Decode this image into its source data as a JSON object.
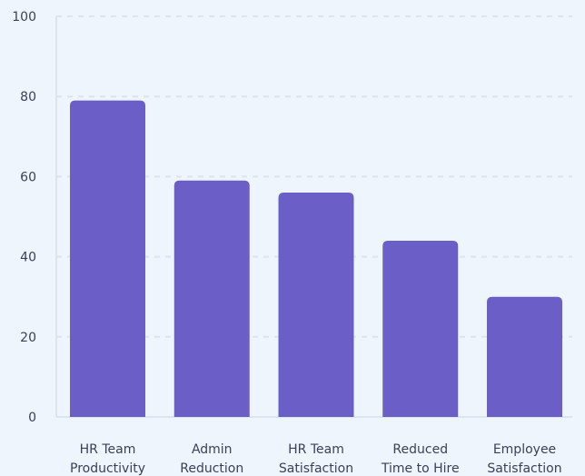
{
  "chart_data": {
    "type": "bar",
    "categories": [
      [
        "HR Team",
        "Productivity"
      ],
      [
        "Admin",
        "Reduction"
      ],
      [
        "HR Team",
        "Satisfaction"
      ],
      [
        "Reduced",
        "Time to Hire"
      ],
      [
        "Employee",
        "Satisfaction"
      ]
    ],
    "values": [
      79,
      59,
      56,
      44,
      30
    ],
    "ylim": [
      0,
      100
    ],
    "yticks": [
      0,
      20,
      40,
      60,
      80,
      100
    ],
    "title": "",
    "xlabel": "",
    "ylabel": "",
    "grid": true,
    "colors": {
      "bar": "#6c5ec7",
      "grid": "#dde4ee",
      "axis": "#dde4ee",
      "text": "#3b3f57",
      "background": "#eff5fd"
    }
  }
}
